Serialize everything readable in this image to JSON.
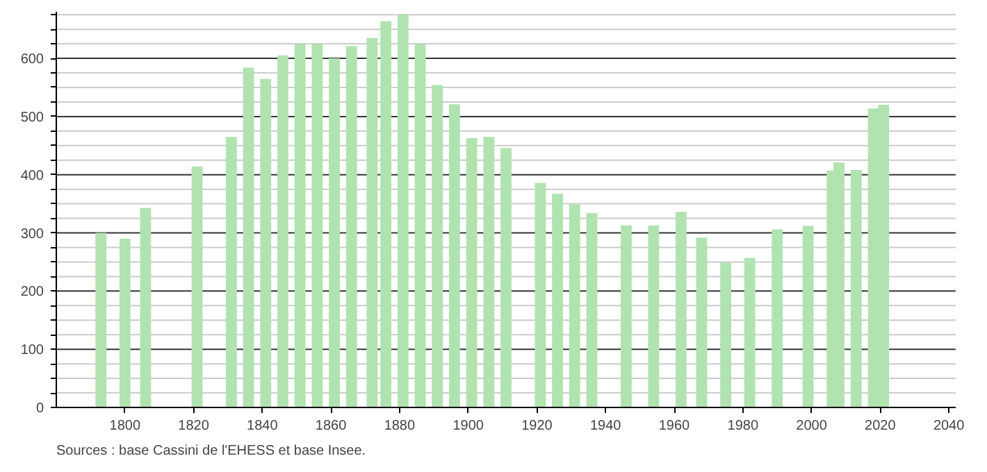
{
  "chart_data": {
    "type": "bar",
    "x": [
      1793,
      1800,
      1806,
      1821,
      1831,
      1836,
      1841,
      1846,
      1851,
      1856,
      1861,
      1866,
      1872,
      1876,
      1881,
      1886,
      1891,
      1896,
      1901,
      1906,
      1911,
      1921,
      1926,
      1931,
      1936,
      1946,
      1954,
      1962,
      1968,
      1975,
      1982,
      1990,
      1999,
      2006,
      2008,
      2013,
      2018,
      2021
    ],
    "values": [
      300,
      290,
      343,
      414,
      465,
      584,
      565,
      605,
      625,
      625,
      600,
      621,
      635,
      664,
      676,
      625,
      554,
      521,
      463,
      465,
      446,
      386,
      367,
      349,
      334,
      313,
      313,
      336,
      292,
      249,
      257,
      306,
      312,
      407,
      421,
      408,
      514,
      520
    ],
    "color": "#b0e3b0",
    "xlim": [
      1780,
      2042
    ],
    "ylim": [
      0,
      680
    ],
    "xticks": [
      1800,
      1820,
      1840,
      1860,
      1880,
      1900,
      1920,
      1940,
      1960,
      1980,
      2000,
      2020,
      2040
    ],
    "yticks": [
      0,
      {
        "value": 25,
        "label": null
      },
      {
        "value": 50,
        "label": null
      },
      {
        "value": 75,
        "label": null
      },
      100,
      {
        "value": 125,
        "label": null
      },
      {
        "value": 150,
        "label": null
      },
      {
        "value": 175,
        "label": null
      },
      200,
      {
        "value": 225,
        "label": null
      },
      {
        "value": 250,
        "label": null
      },
      {
        "value": 275,
        "label": null
      },
      300,
      {
        "value": 325,
        "label": null
      },
      {
        "value": 350,
        "label": null
      },
      {
        "value": 375,
        "label": null
      },
      400,
      {
        "value": 425,
        "label": null
      },
      {
        "value": 450,
        "label": null
      },
      {
        "value": 475,
        "label": null
      },
      500,
      {
        "value": 525,
        "label": null
      },
      {
        "value": 550,
        "label": null
      },
      {
        "value": 575,
        "label": null
      },
      600,
      {
        "value": 625,
        "label": null
      },
      {
        "value": 650,
        "label": null
      },
      {
        "value": 675,
        "label": null
      }
    ],
    "grid": "y",
    "annotations": [
      "Sources : base Cassini de l'EHESS et base Insee."
    ]
  }
}
